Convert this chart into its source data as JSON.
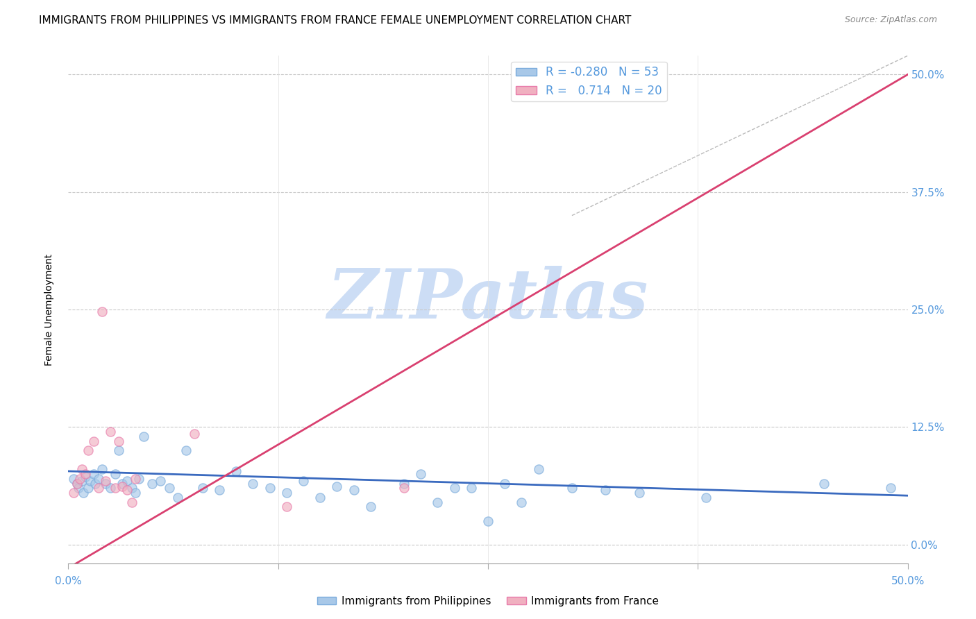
{
  "title": "IMMIGRANTS FROM PHILIPPINES VS IMMIGRANTS FROM FRANCE FEMALE UNEMPLOYMENT CORRELATION CHART",
  "source": "Source: ZipAtlas.com",
  "ylabel": "Female Unemployment",
  "ytick_labels": [
    "0.0%",
    "12.5%",
    "25.0%",
    "37.5%",
    "50.0%"
  ],
  "ytick_values": [
    0.0,
    0.125,
    0.25,
    0.375,
    0.5
  ],
  "xlim": [
    0.0,
    0.5
  ],
  "ylim": [
    -0.02,
    0.52
  ],
  "ylim_data": [
    0.0,
    0.5
  ],
  "watermark": "ZIPatlas",
  "legend_entries": [
    {
      "label": "Immigrants from Philippines",
      "color": "#aec6e8",
      "R": "-0.280",
      "N": "53"
    },
    {
      "label": "Immigrants from France",
      "color": "#f4b8c1",
      "R": "0.714",
      "N": "20"
    }
  ],
  "philippines_scatter_x": [
    0.003,
    0.005,
    0.006,
    0.008,
    0.009,
    0.01,
    0.012,
    0.013,
    0.015,
    0.016,
    0.018,
    0.02,
    0.022,
    0.025,
    0.028,
    0.03,
    0.032,
    0.035,
    0.038,
    0.04,
    0.042,
    0.045,
    0.05,
    0.055,
    0.06,
    0.065,
    0.07,
    0.08,
    0.09,
    0.1,
    0.11,
    0.12,
    0.13,
    0.14,
    0.15,
    0.16,
    0.17,
    0.18,
    0.2,
    0.21,
    0.22,
    0.23,
    0.24,
    0.25,
    0.26,
    0.27,
    0.28,
    0.3,
    0.32,
    0.34,
    0.38,
    0.45,
    0.49
  ],
  "philippines_scatter_y": [
    0.07,
    0.065,
    0.06,
    0.068,
    0.055,
    0.072,
    0.06,
    0.068,
    0.075,
    0.065,
    0.07,
    0.08,
    0.065,
    0.06,
    0.075,
    0.1,
    0.065,
    0.068,
    0.06,
    0.055,
    0.07,
    0.115,
    0.065,
    0.068,
    0.06,
    0.05,
    0.1,
    0.06,
    0.058,
    0.078,
    0.065,
    0.06,
    0.055,
    0.068,
    0.05,
    0.062,
    0.058,
    0.04,
    0.065,
    0.075,
    0.045,
    0.06,
    0.06,
    0.025,
    0.065,
    0.045,
    0.08,
    0.06,
    0.058,
    0.055,
    0.05,
    0.065,
    0.06
  ],
  "france_scatter_x": [
    0.003,
    0.005,
    0.007,
    0.008,
    0.01,
    0.012,
    0.015,
    0.018,
    0.02,
    0.022,
    0.025,
    0.028,
    0.03,
    0.032,
    0.035,
    0.038,
    0.04,
    0.075,
    0.13,
    0.2
  ],
  "france_scatter_y": [
    0.055,
    0.065,
    0.07,
    0.08,
    0.075,
    0.1,
    0.11,
    0.06,
    0.248,
    0.068,
    0.12,
    0.06,
    0.11,
    0.062,
    0.058,
    0.045,
    0.07,
    0.118,
    0.04,
    0.06
  ],
  "philippines_trend_x": [
    0.0,
    0.5
  ],
  "philippines_trend_y": [
    0.078,
    0.052
  ],
  "france_trend_x": [
    0.0,
    0.5
  ],
  "france_trend_y": [
    -0.025,
    0.5
  ],
  "diag_ref_line_x": [
    0.3,
    0.5
  ],
  "diag_ref_line_y": [
    0.35,
    0.52
  ],
  "scatter_size": 90,
  "scatter_alpha": 0.65,
  "line_width": 2.0,
  "blue_scatter_color": "#a8c8e8",
  "pink_scatter_color": "#f0b0c0",
  "blue_edge_color": "#7aabdc",
  "pink_edge_color": "#e87aaa",
  "trend_blue": "#3a6abf",
  "trend_pink": "#d94070",
  "grid_color": "#c8c8c8",
  "right_tick_color": "#5599dd",
  "title_fontsize": 11,
  "axis_label_fontsize": 10,
  "tick_fontsize": 11,
  "watermark_color": "#ccddf5",
  "watermark_fontsize": 72,
  "xtick_positions": [
    0.0,
    0.125,
    0.25,
    0.375,
    0.5
  ]
}
